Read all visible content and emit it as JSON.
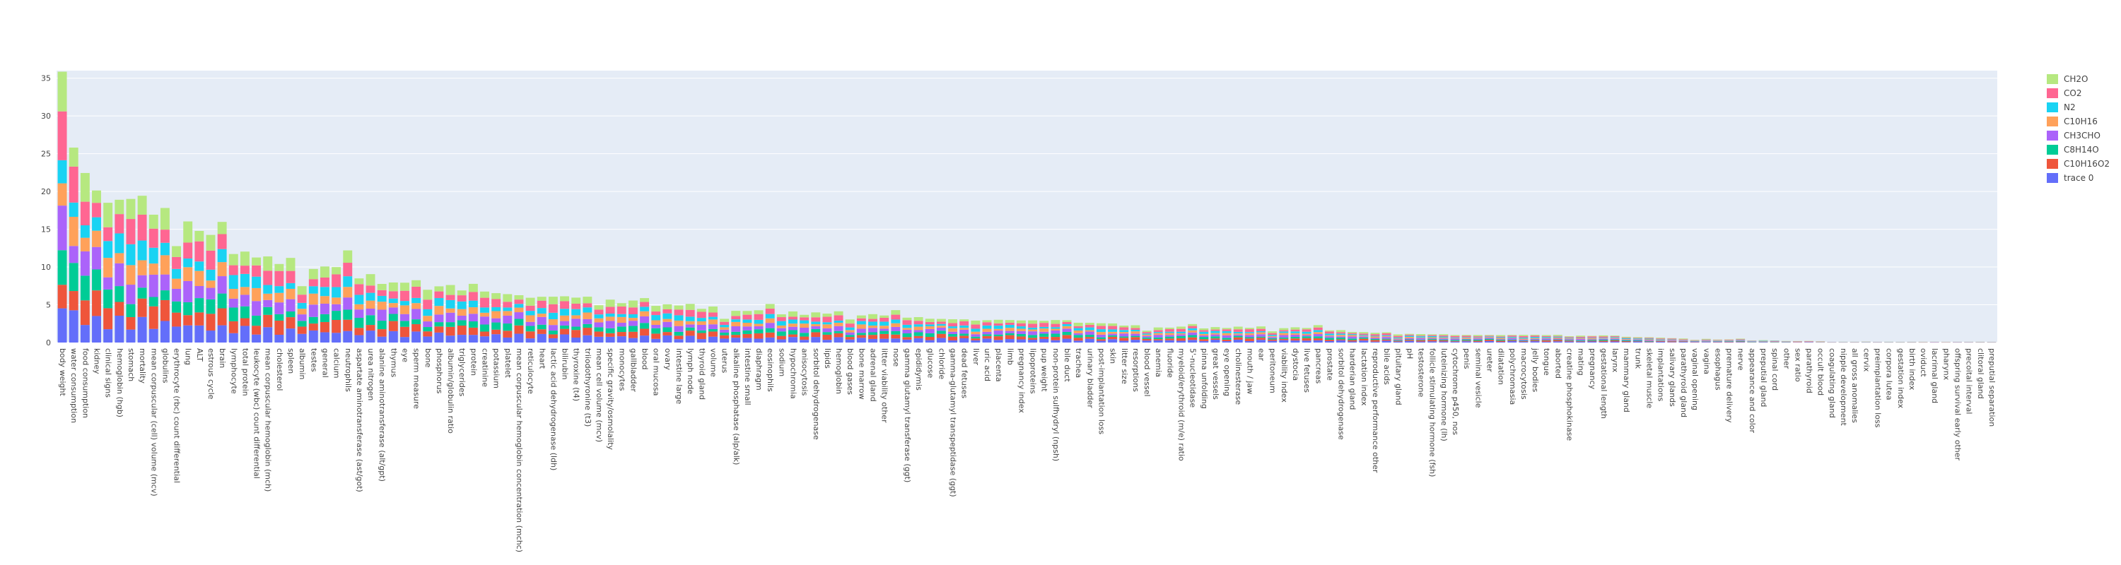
{
  "chart_data": {
    "type": "bar",
    "barmode": "stack",
    "legend_placement": "top-right",
    "grid": true,
    "ylim": [
      0,
      36
    ],
    "yticks": [
      0,
      5,
      10,
      15,
      20,
      25,
      30,
      35
    ],
    "categories": [
      "body weight",
      "water consumption",
      "food consumption",
      "kidney",
      "clinical signs",
      "hemoglobin (hgb)",
      "stomach",
      "mortality",
      "mean corpuscular (cell) volume (mcv)",
      "globulins",
      "erythrocyte (rbc) count differential",
      "lung",
      "ALT",
      "estrous cycle",
      "brain",
      "lymphocyte",
      "total protein",
      "leukocyte (wbc) count differential",
      "mean corpuscular hemoglobin (mch)",
      "cholesterol",
      "spleen",
      "albumin",
      "testes",
      "general",
      "calcium",
      "neutrophils",
      "aspartate aminotransferase (ast/got)",
      "urea nitrogen",
      "alanine aminotransferase (alt/gpt)",
      "thymus",
      "eye",
      "sperm measure",
      "bone",
      "phosphorus",
      "albumin/globulin ratio",
      "triglycerides",
      "protein",
      "creatinine",
      "potassium",
      "platelet",
      "mean corpuscular hemoglobin concentration (mchc)",
      "reticulocyte",
      "heart",
      "lactic acid dehydrogenase (ldh)",
      "bilirubin",
      "thyroxine (t4)",
      "triiodothyronine (t3)",
      "mean cell volume (mcv)",
      "specific gravity/osmolality",
      "monocytes",
      "gallbladder",
      "blood",
      "oral mucosa",
      "ovary",
      "intestine large",
      "lymph node",
      "thyroid gland",
      "volume",
      "uterus",
      "alkaline phosphatase (alp/alk)",
      "intestine small",
      "diaphragm",
      "eosinophils",
      "sodium",
      "hypochromia",
      "anisocytosis",
      "sorbitol dehydrogenase",
      "lipids",
      "hemoglobin",
      "blood gases",
      "bone marrow",
      "adrenal gland",
      "litter viability other",
      "nose",
      "gamma glutamyl transferase (ggt)",
      "epididymis",
      "glucose",
      "chloride",
      "gamma-glutamyl transpeptidase (ggt)",
      "dead fetuses",
      "liver",
      "uric acid",
      "placenta",
      "limb",
      "pregnancy index",
      "lipoproteins",
      "pup weight",
      "non-protein sulfhydryl (npsh)",
      "bile duct",
      "trachea",
      "urinary bladder",
      "post-implantation loss",
      "skin",
      "litter size",
      "resorptions",
      "blood vessel",
      "anemia",
      "fluoride",
      "myeloid/erythroid (m/e) ratio",
      "5'-nucleotidase",
      "pinna unfolding",
      "great vessels",
      "eye opening",
      "cholinesterase",
      "mouth / jaw",
      "ear",
      "peritoneum",
      "viability index",
      "dystocia",
      "live fetuses",
      "pancreas",
      "prostate",
      "sorbitol dehydrogenase",
      "harderian gland",
      "lactation index",
      "reproductive performance other",
      "bile acids",
      "pituitary gland",
      "pH",
      "testosterone",
      "follicle stimulating hormone (fsh)",
      "luteinizing hormone (lh)",
      "cytochrome p450, nos",
      "penis",
      "seminal vesicle",
      "ureter",
      "dilatation",
      "polychromasia",
      "macrocytosis",
      "jelly bodies",
      "tongue",
      "aborted",
      "creatine phosphokinase",
      "mating",
      "pregnancy",
      "gestational length",
      "larynx",
      "mammary gland",
      "trunk",
      "skeletal muscle",
      "implantations",
      "salivary glands",
      "parathyroid gland",
      "vaginal opening",
      "vagina",
      "esophagus",
      "premature delivery",
      "nerve",
      "appearance and color",
      "preputial gland",
      "spinal cord",
      "other",
      "sex ratio",
      "parathyroid",
      "occult blood",
      "coagulating gland",
      "nipple development",
      "all gross anomalies",
      "cervix",
      "preimplantation loss",
      "corpora lutea",
      "gestation index",
      "birth index",
      "oviduct",
      "lacrimal gland",
      "pharynx",
      "offspring survival early other",
      "precoital interval",
      "clitoral gland",
      "preputial separation"
    ],
    "totals": [
      35.5,
      26,
      22,
      19.3,
      19,
      18.8,
      18.6,
      18.5,
      17.3,
      17.2,
      16.8,
      16,
      15,
      13.5,
      13.2,
      12.5,
      11.8,
      11.6,
      10.8,
      10.7,
      10.5,
      10.2,
      10.2,
      10,
      9.8,
      9.5,
      9,
      8.8,
      8.3,
      8,
      8,
      7.9,
      7.9,
      7.8,
      7.5,
      7,
      6.9,
      6.8,
      6.5,
      6.5,
      6.3,
      6,
      6,
      6,
      6,
      6,
      6,
      5.8,
      5.6,
      5.3,
      5.3,
      5.2,
      5.1,
      5,
      4.9,
      4.8,
      4.6,
      4.5,
      4.4,
      4.3,
      4.2,
      4.1,
      4,
      4,
      4,
      3.9,
      3.9,
      3.9,
      3.9,
      3.8,
      3.8,
      3.7,
      3.6,
      3.5,
      3.4,
      3.3,
      3.3,
      3.2,
      3.1,
      3,
      3,
      3,
      3,
      3,
      3,
      2.9,
      2.9,
      2.9,
      2.8,
      2.7,
      2.6,
      2.5,
      2.4,
      2.3,
      2.2,
      2.1,
      2,
      2,
      2,
      2,
      2,
      2,
      2,
      2,
      2,
      2,
      2,
      2,
      2,
      1.9,
      1.8,
      1.7,
      1.6,
      1.5,
      1.4,
      1.3,
      1.3,
      1.2,
      1.2,
      1.1,
      1.1,
      1,
      1,
      1,
      1,
      1,
      1,
      1,
      1,
      1,
      1,
      1,
      1,
      0.9,
      0.9,
      0.9,
      0.8,
      0.8,
      0.7,
      0.7,
      0.6,
      0.6,
      0.5,
      0.5,
      0.5,
      0.4,
      0.4,
      0.4,
      0.3,
      0.3,
      0.3,
      0.2,
      0.2,
      0.2,
      0.2,
      0.1,
      0.1,
      0.1,
      0.1,
      0.1,
      0.1,
      0.1,
      0.1,
      0.1,
      0.1,
      0.1,
      0.1,
      0.1,
      0.1,
      0.1
    ],
    "series": [
      {
        "name": "trace 0",
        "color": "#636efa",
        "weight": 0.14
      },
      {
        "name": "C10H16O2",
        "color": "#EF553B",
        "weight": 0.13
      },
      {
        "name": "C8H14O",
        "color": "#00cc96",
        "weight": 0.11
      },
      {
        "name": "CH3CHO",
        "color": "#ab63fa",
        "weight": 0.13
      },
      {
        "name": "C10H16",
        "color": "#FFA15A",
        "weight": 0.11
      },
      {
        "name": "N2",
        "color": "#19d3f3",
        "weight": 0.11
      },
      {
        "name": "CO2",
        "color": "#FF6692",
        "weight": 0.14
      },
      {
        "name": "CH2O",
        "color": "#B6E880",
        "weight": 0.13
      }
    ]
  }
}
